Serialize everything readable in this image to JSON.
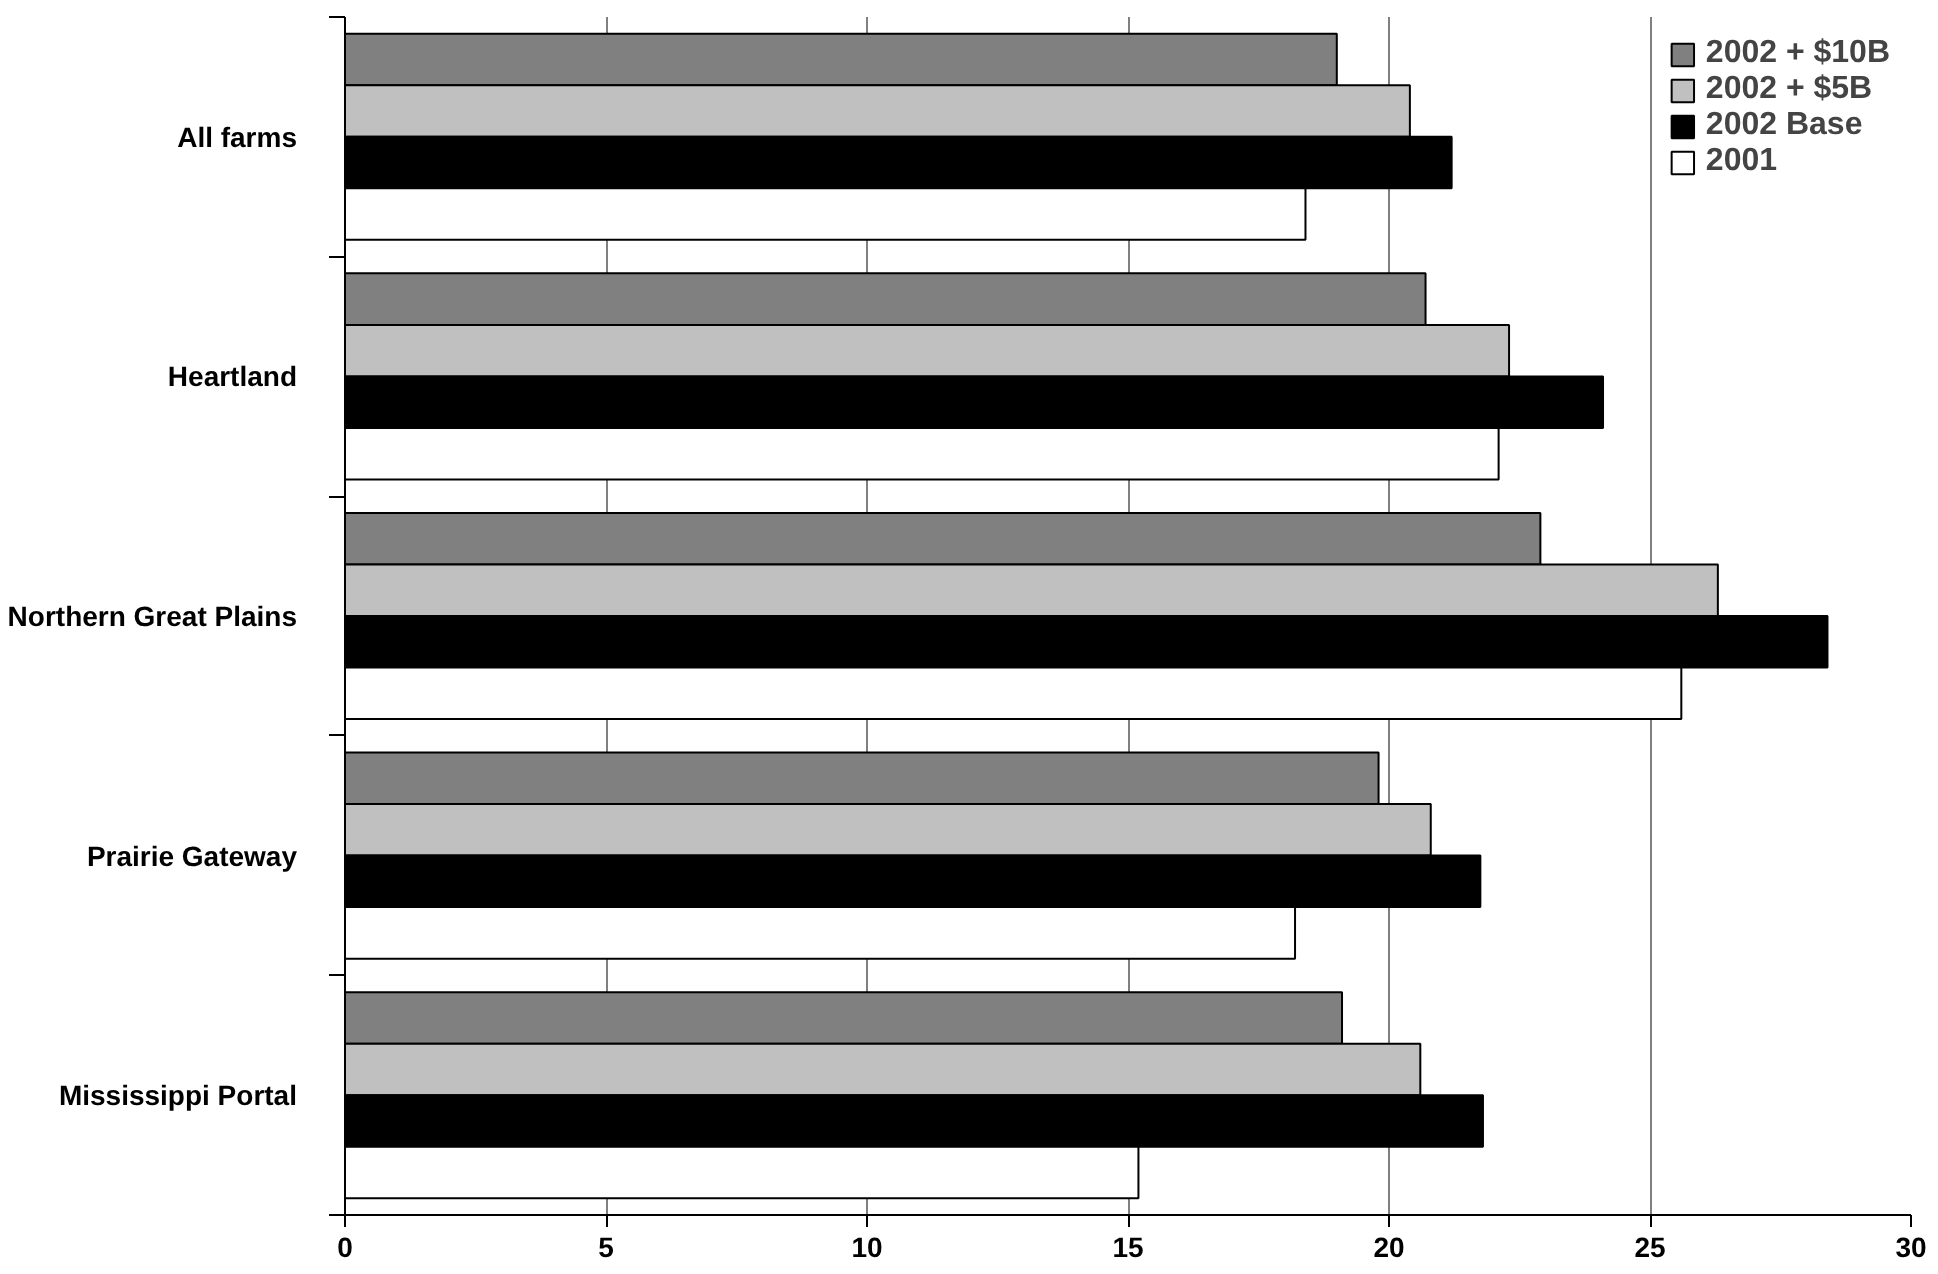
{
  "chart_data": {
    "type": "bar",
    "orientation": "horizontal",
    "categories": [
      "All farms",
      "Heartland",
      "Northern Great Plains",
      "Prairie Gateway",
      "Mississippi Portal"
    ],
    "series": [
      {
        "name": "2002 + $10B",
        "color": "#808080",
        "values": [
          19.0,
          20.7,
          22.9,
          19.8,
          19.1
        ]
      },
      {
        "name": "2002 + $5B",
        "color": "#c0c0c0",
        "values": [
          20.4,
          22.3,
          26.3,
          20.8,
          20.6
        ]
      },
      {
        "name": "2002 Base",
        "color": "#000000",
        "values": [
          21.2,
          24.1,
          28.4,
          21.75,
          21.8
        ]
      },
      {
        "name": "2001",
        "color": "#ffffff",
        "values": [
          18.4,
          22.1,
          25.6,
          18.2,
          15.2
        ]
      }
    ],
    "xlim": [
      0,
      30
    ],
    "xticks": [
      0,
      5,
      10,
      15,
      20,
      25,
      30
    ],
    "grid": "x",
    "legend": "top right"
  }
}
